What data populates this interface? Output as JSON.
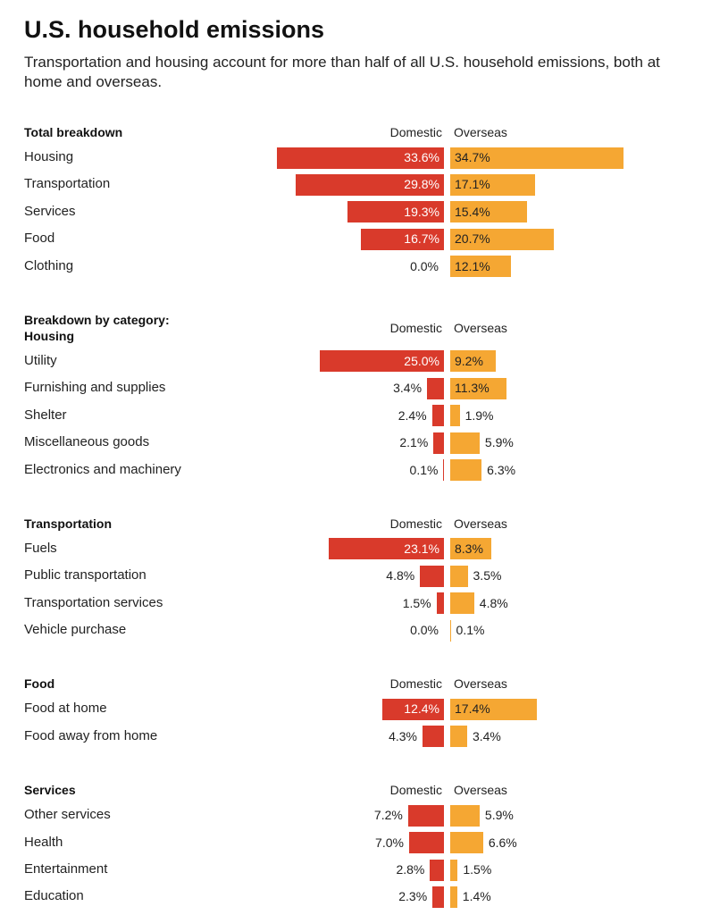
{
  "header": {
    "title": "U.S. household emissions",
    "subtitle": "Transportation and housing account for more than half of all U.S. household emissions, both at home and overseas."
  },
  "chart_data": [
    {
      "type": "butterfly",
      "title": "Total breakdown",
      "categories": [
        "Housing",
        "Transportation",
        "Services",
        "Food",
        "Clothing"
      ],
      "series": [
        {
          "name": "Domestic",
          "color": "#d93a2b",
          "values": [
            33.6,
            29.8,
            19.3,
            16.7,
            0.0
          ],
          "value_labels": [
            "33.6%",
            "29.8%",
            "19.3%",
            "16.7%",
            "0.0%"
          ]
        },
        {
          "name": "Overseas",
          "color": "#f5a733",
          "values": [
            34.7,
            17.1,
            15.4,
            20.7,
            12.1
          ],
          "value_labels": [
            "34.7%",
            "17.1%",
            "15.4%",
            "20.7%",
            "12.1%"
          ]
        }
      ]
    },
    {
      "type": "butterfly",
      "title": "Breakdown by category: Housing",
      "categories": [
        "Utility",
        "Furnishing and supplies",
        "Shelter",
        "Miscellaneous goods",
        "Electronics and machinery"
      ],
      "series": [
        {
          "name": "Domestic",
          "color": "#d93a2b",
          "values": [
            25.0,
            3.4,
            2.4,
            2.1,
            0.1
          ],
          "value_labels": [
            "25.0%",
            "3.4%",
            "2.4%",
            "2.1%",
            "0.1%"
          ]
        },
        {
          "name": "Overseas",
          "color": "#f5a733",
          "values": [
            9.2,
            11.3,
            1.9,
            5.9,
            6.3
          ],
          "value_labels": [
            "9.2%",
            "11.3%",
            "1.9%",
            "5.9%",
            "6.3%"
          ]
        }
      ]
    },
    {
      "type": "butterfly",
      "title": "Transportation",
      "categories": [
        "Fuels",
        "Public transportation",
        "Transportation services",
        "Vehicle purchase"
      ],
      "series": [
        {
          "name": "Domestic",
          "color": "#d93a2b",
          "values": [
            23.1,
            4.8,
            1.5,
            0.0
          ],
          "value_labels": [
            "23.1%",
            "4.8%",
            "1.5%",
            "0.0%"
          ]
        },
        {
          "name": "Overseas",
          "color": "#f5a733",
          "values": [
            8.3,
            3.5,
            4.8,
            0.1
          ],
          "value_labels": [
            "8.3%",
            "3.5%",
            "4.8%",
            "0.1%"
          ]
        }
      ]
    },
    {
      "type": "butterfly",
      "title": "Food",
      "categories": [
        "Food at home",
        "Food away from home"
      ],
      "series": [
        {
          "name": "Domestic",
          "color": "#d93a2b",
          "values": [
            12.4,
            4.3
          ],
          "value_labels": [
            "12.4%",
            "4.3%"
          ]
        },
        {
          "name": "Overseas",
          "color": "#f5a733",
          "values": [
            17.4,
            3.4
          ],
          "value_labels": [
            "17.4%",
            "3.4%"
          ]
        }
      ]
    },
    {
      "type": "butterfly",
      "title": "Services",
      "categories": [
        "Other services",
        "Health",
        "Entertainment",
        "Education"
      ],
      "series": [
        {
          "name": "Domestic",
          "color": "#d93a2b",
          "values": [
            7.2,
            7.0,
            2.8,
            2.3
          ],
          "value_labels": [
            "7.2%",
            "7.0%",
            "2.8%",
            "2.3%"
          ]
        },
        {
          "name": "Overseas",
          "color": "#f5a733",
          "values": [
            5.9,
            6.6,
            1.5,
            1.4
          ],
          "value_labels": [
            "5.9%",
            "6.6%",
            "1.5%",
            "1.4%"
          ]
        }
      ]
    }
  ]
}
